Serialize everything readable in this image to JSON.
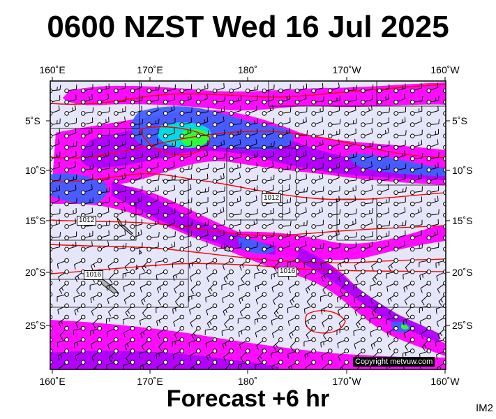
{
  "title": "0600 NZST Wed 16 Jul 2025",
  "subtitle": "Forecast +6 hr",
  "product_code": "IM2",
  "copyright": "Copyright metvuw.com",
  "axes": {
    "lon_labels": [
      "160˚E",
      "170˚E",
      "180˚",
      "170˚W",
      "160˚W"
    ],
    "lat_labels": [
      "5˚S",
      "10˚S",
      "15˚S",
      "20˚S",
      "25˚S"
    ]
  },
  "isobar_labels": [
    "1012",
    "1012",
    "1016",
    "1016"
  ],
  "colors": {
    "background": "#e6e6fa",
    "isobar": "#ff0000",
    "coast": "#000000",
    "rain_light": "#ff00ff",
    "rain_moderate": "#b000ff",
    "rain_heavy": "#4060ff",
    "rain_intense": "#00e0e0",
    "rain_extreme": "#30ff30"
  }
}
